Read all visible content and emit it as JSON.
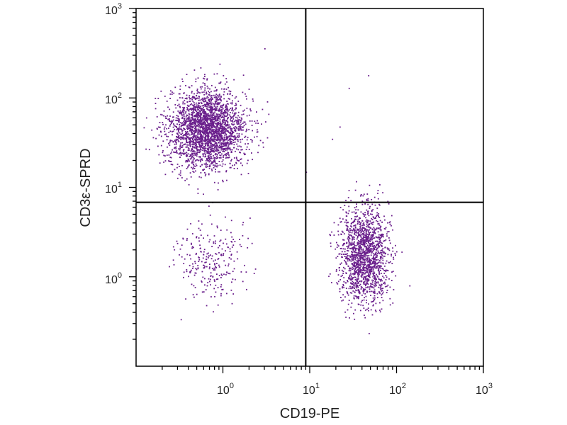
{
  "chart_data": {
    "type": "scatter",
    "title": "",
    "xlabel": "CD19-PE",
    "ylabel": "CD3ε-SPRD",
    "xscale": "log",
    "yscale": "log",
    "xlim": [
      0.1,
      1000
    ],
    "ylim": [
      0.1,
      1000
    ],
    "x_ticks": [
      {
        "base": "10",
        "exp": "0",
        "value": 1
      },
      {
        "base": "10",
        "exp": "1",
        "value": 10
      },
      {
        "base": "10",
        "exp": "2",
        "value": 100
      },
      {
        "base": "10",
        "exp": "3",
        "value": 1000
      }
    ],
    "y_ticks": [
      {
        "base": "10",
        "exp": "0",
        "value": 1
      },
      {
        "base": "10",
        "exp": "1",
        "value": 10
      },
      {
        "base": "10",
        "exp": "2",
        "value": 100
      },
      {
        "base": "10",
        "exp": "3",
        "value": 1000
      }
    ],
    "quadrant_gates": {
      "x": 9.0,
      "y": 6.8
    },
    "dot_color": "#6a1f8c",
    "line_color": "#000000",
    "grid": false,
    "legend": "none",
    "populations": [
      {
        "label": "CD3+ CD19-",
        "x_center": 0.65,
        "y_center": 45,
        "x_spread_decades": 0.22,
        "y_spread_decades": 0.22,
        "count": 2600
      },
      {
        "label": "CD3- CD19-",
        "x_center": 0.7,
        "y_center": 1.6,
        "x_spread_decades": 0.2,
        "y_spread_decades": 0.23,
        "count": 260
      },
      {
        "label": "CD3- CD19+",
        "x_center": 42,
        "y_center": 1.8,
        "x_spread_decades": 0.14,
        "y_spread_decades": 0.26,
        "count": 1600
      }
    ],
    "outliers": [
      {
        "x": 3.0,
        "y": 360
      },
      {
        "x": 47,
        "y": 180
      },
      {
        "x": 28,
        "y": 130
      },
      {
        "x": 22,
        "y": 48
      },
      {
        "x": 18,
        "y": 35
      },
      {
        "x": 9.0,
        "y": 15
      }
    ]
  }
}
